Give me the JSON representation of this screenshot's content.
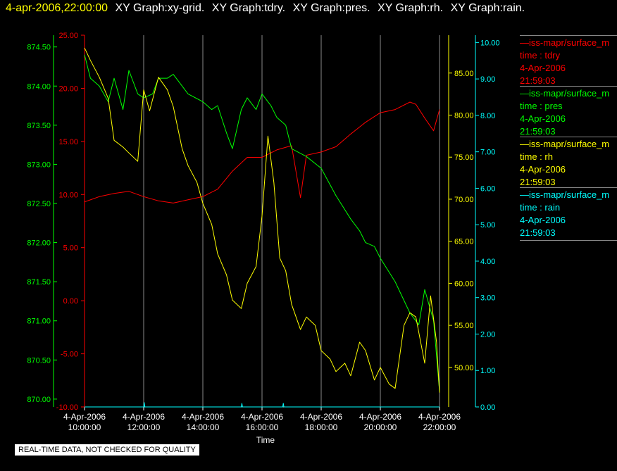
{
  "header": {
    "timestamp": "4-apr-2006,22:00:00",
    "graphs": [
      "XY Graph:xy-grid.",
      "XY Graph:tdry.",
      "XY Graph:pres.",
      "XY Graph:rh.",
      "XY Graph:rain."
    ]
  },
  "legend": [
    {
      "source": "—iss-mapr/surface_m",
      "var": "time : tdry",
      "date": "4-Apr-2006",
      "time": "21:59:03",
      "color": "#ff0000"
    },
    {
      "source": "—iss-mapr/surface_m",
      "var": "time : pres",
      "date": "4-Apr-2006",
      "time": "21:59:03",
      "color": "#00ff00"
    },
    {
      "source": "—iss-mapr/surface_m",
      "var": "time : rh",
      "date": "4-Apr-2006",
      "time": "21:59:03",
      "color": "#ffff00"
    },
    {
      "source": "—iss-mapr/surface_m",
      "var": "time : rain",
      "date": "4-Apr-2006",
      "time": "21:59:03",
      "color": "#00ffff"
    }
  ],
  "disclaimer": "REAL-TIME DATA, NOT CHECKED FOR QUALITY",
  "chart_data": {
    "type": "line",
    "xlabel": "Time",
    "x_ticks": [
      {
        "date": "4-Apr-2006",
        "time": "10:00:00"
      },
      {
        "date": "4-Apr-2006",
        "time": "12:00:00"
      },
      {
        "date": "4-Apr-2006",
        "time": "14:00:00"
      },
      {
        "date": "4-Apr-2006",
        "time": "16:00:00"
      },
      {
        "date": "4-Apr-2006",
        "time": "18:00:00"
      },
      {
        "date": "4-Apr-2006",
        "time": "20:00:00"
      },
      {
        "date": "4-Apr-2006",
        "time": "22:00:00"
      }
    ],
    "xlim_hours": [
      10,
      22
    ],
    "grid": "vertical",
    "axes": {
      "pres": {
        "color": "#00ff00",
        "ylim": [
          869.9,
          874.65
        ],
        "ticks": [
          "870.00",
          "870.50",
          "871.00",
          "871.50",
          "872.00",
          "872.50",
          "873.00",
          "873.50",
          "874.00",
          "874.50"
        ]
      },
      "tdry": {
        "color": "#ff0000",
        "ylim": [
          -10,
          25
        ],
        "ticks": [
          "-10.00",
          "-5.00",
          "0.00",
          "5.00",
          "10.00",
          "15.00",
          "20.00",
          "25.00"
        ]
      },
      "rh": {
        "color": "#ffff00",
        "ylim": [
          45.3,
          89.5
        ],
        "ticks": [
          "50.00",
          "55.00",
          "60.00",
          "65.00",
          "70.00",
          "75.00",
          "80.00",
          "85.00"
        ]
      },
      "rain": {
        "color": "#00ffff",
        "ylim": [
          0,
          10.2
        ],
        "ticks": [
          "0.00",
          "1.00",
          "2.00",
          "3.00",
          "4.00",
          "5.00",
          "6.00",
          "7.00",
          "8.00",
          "9.00",
          "10.00"
        ]
      }
    },
    "series": [
      {
        "name": "tdry",
        "axis": "tdry",
        "color": "#ff0000",
        "x": [
          10.0,
          10.5,
          11.0,
          11.5,
          12.0,
          12.5,
          13.0,
          13.5,
          14.0,
          14.5,
          15.0,
          15.5,
          16.0,
          16.5,
          17.0,
          17.3,
          17.5,
          18.0,
          18.5,
          19.0,
          19.5,
          20.0,
          20.5,
          21.0,
          21.2,
          21.5,
          21.8,
          22.0
        ],
        "y": [
          9.3,
          9.8,
          10.1,
          10.3,
          9.8,
          9.4,
          9.2,
          9.5,
          9.8,
          10.5,
          12.2,
          13.5,
          13.5,
          14.2,
          14.6,
          9.7,
          13.7,
          14.0,
          14.5,
          15.7,
          16.8,
          17.7,
          18.0,
          18.7,
          18.5,
          17.2,
          16.0,
          18.0
        ]
      },
      {
        "name": "pres",
        "axis": "pres",
        "color": "#00ff00",
        "x": [
          10.0,
          10.2,
          10.5,
          10.8,
          11.0,
          11.3,
          11.5,
          11.8,
          12.0,
          12.3,
          12.5,
          12.8,
          13.0,
          13.5,
          14.0,
          14.3,
          14.5,
          14.8,
          15.0,
          15.3,
          15.5,
          15.8,
          16.0,
          16.3,
          16.5,
          16.8,
          17.0,
          17.5,
          18.0,
          18.5,
          19.0,
          19.3,
          19.5,
          19.8,
          20.0,
          20.5,
          21.0,
          21.3,
          21.5,
          21.8,
          22.0
        ],
        "y": [
          874.4,
          874.1,
          874.0,
          873.8,
          874.1,
          873.7,
          874.2,
          873.9,
          873.85,
          873.9,
          874.1,
          874.1,
          874.15,
          873.9,
          873.8,
          873.7,
          873.75,
          873.4,
          873.2,
          873.7,
          873.85,
          873.7,
          873.9,
          873.75,
          873.6,
          873.5,
          873.2,
          873.1,
          872.95,
          872.6,
          872.3,
          872.15,
          872.0,
          871.95,
          871.8,
          871.5,
          871.1,
          870.95,
          871.4,
          871.0,
          870.1
        ]
      },
      {
        "name": "rh",
        "axis": "rh",
        "color": "#ffff00",
        "x": [
          10.0,
          10.2,
          10.5,
          10.8,
          11.0,
          11.3,
          11.5,
          11.8,
          12.0,
          12.2,
          12.5,
          12.8,
          13.0,
          13.3,
          13.5,
          13.8,
          14.0,
          14.3,
          14.5,
          14.8,
          15.0,
          15.3,
          15.5,
          15.8,
          16.0,
          16.2,
          16.4,
          16.6,
          16.8,
          17.0,
          17.3,
          17.5,
          17.8,
          18.0,
          18.3,
          18.5,
          18.8,
          19.0,
          19.3,
          19.5,
          19.8,
          20.0,
          20.3,
          20.5,
          20.8,
          21.0,
          21.2,
          21.5,
          21.7,
          21.9,
          22.0
        ],
        "y": [
          88.0,
          86.5,
          84.5,
          82.0,
          77.0,
          76.2,
          75.5,
          74.5,
          83.0,
          80.5,
          84.5,
          83.0,
          81.0,
          76.0,
          74.0,
          72.0,
          69.5,
          67.0,
          63.5,
          61.0,
          58.0,
          57.0,
          60.0,
          62.0,
          68.0,
          77.5,
          72.0,
          63.0,
          61.5,
          57.5,
          54.5,
          56.0,
          55.0,
          52.0,
          51.0,
          49.5,
          50.5,
          49.0,
          53.0,
          52.0,
          48.5,
          50.0,
          48.0,
          47.5,
          55.0,
          56.5,
          56.0,
          50.5,
          58.5,
          53.0,
          47.0
        ]
      },
      {
        "name": "rain",
        "axis": "rain",
        "color": "#00ffff",
        "x": [
          10.0,
          12.0,
          12.02,
          12.04,
          15.3,
          15.32,
          15.34,
          16.7,
          16.72,
          16.74,
          22.0
        ],
        "y": [
          0.0,
          0.0,
          0.12,
          0.0,
          0.0,
          0.1,
          0.0,
          0.0,
          0.1,
          0.0,
          0.0
        ]
      }
    ]
  }
}
